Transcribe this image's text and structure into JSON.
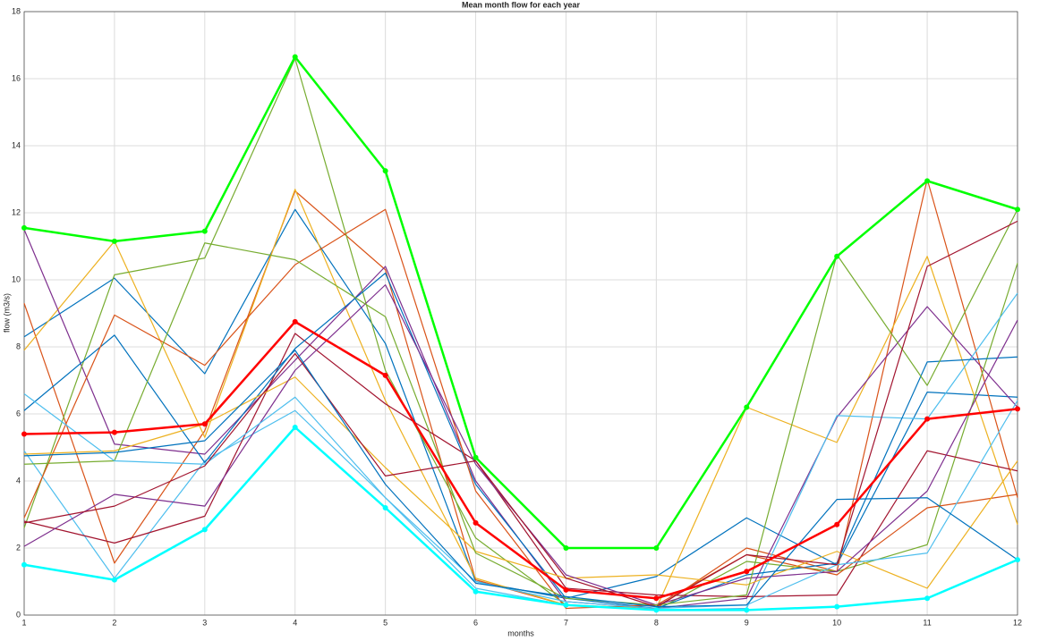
{
  "chart_data": {
    "type": "line",
    "title": "Mean month flow for each year",
    "xlabel": "months",
    "ylabel": "flow (m3/s)",
    "x": [
      1,
      2,
      3,
      4,
      5,
      6,
      7,
      8,
      9,
      10,
      11,
      12
    ],
    "xlim": [
      1,
      12
    ],
    "xticks": [
      1,
      2,
      3,
      4,
      5,
      6,
      7,
      8,
      9,
      10,
      11,
      12
    ],
    "ylim": [
      0,
      18
    ],
    "yticks": [
      0,
      2,
      4,
      6,
      8,
      10,
      12,
      14,
      16,
      18
    ],
    "grid": true,
    "series": [
      {
        "color": "#0072BD",
        "values": [
          8.3,
          10.05,
          7.2,
          12.1,
          8.1,
          1.0,
          0.5,
          1.15,
          2.9,
          1.5,
          6.65,
          6.5
        ]
      },
      {
        "color": "#D95319",
        "values": [
          9.3,
          1.55,
          5.5,
          12.65,
          10.3,
          1.05,
          0.3,
          0.2,
          2.0,
          1.3,
          13.0,
          3.5
        ]
      },
      {
        "color": "#EDB120",
        "values": [
          7.9,
          11.15,
          5.3,
          12.7,
          6.4,
          1.1,
          0.3,
          0.2,
          6.2,
          5.15,
          10.7,
          2.7
        ]
      },
      {
        "color": "#7E2F8E",
        "values": [
          11.5,
          5.1,
          4.8,
          7.6,
          10.4,
          4.0,
          0.4,
          0.2,
          0.5,
          5.9,
          9.2,
          6.2
        ]
      },
      {
        "color": "#77AC30",
        "values": [
          2.6,
          10.15,
          10.65,
          16.6,
          7.3,
          2.3,
          0.3,
          0.15,
          1.6,
          1.3,
          2.1,
          10.5
        ]
      },
      {
        "color": "#4DBEEE",
        "values": [
          4.9,
          1.1,
          4.6,
          6.1,
          3.5,
          0.8,
          0.3,
          0.15,
          0.2,
          5.95,
          5.85,
          9.6
        ]
      },
      {
        "color": "#A2142F",
        "values": [
          2.8,
          2.15,
          2.95,
          8.4,
          6.3,
          4.6,
          0.8,
          0.6,
          0.55,
          0.6,
          4.9,
          4.3
        ]
      },
      {
        "color": "#0072BD",
        "values": [
          6.1,
          8.35,
          4.55,
          7.95,
          10.2,
          3.9,
          0.5,
          0.2,
          1.2,
          1.55,
          7.55,
          7.7
        ]
      },
      {
        "color": "#D95319",
        "values": [
          2.9,
          8.95,
          7.45,
          10.45,
          12.1,
          3.7,
          0.2,
          0.3,
          1.8,
          1.2,
          3.2,
          3.6
        ]
      },
      {
        "color": "#EDB120",
        "values": [
          4.8,
          4.9,
          5.7,
          7.1,
          4.4,
          1.9,
          1.1,
          1.2,
          0.9,
          1.9,
          0.8,
          4.6
        ]
      },
      {
        "color": "#7E2F8E",
        "values": [
          2.05,
          3.6,
          3.25,
          7.3,
          9.85,
          4.5,
          1.2,
          0.3,
          1.1,
          1.3,
          3.7,
          8.8
        ]
      },
      {
        "color": "#77AC30",
        "values": [
          4.5,
          4.6,
          11.1,
          10.6,
          8.9,
          1.85,
          0.5,
          0.3,
          0.6,
          10.75,
          6.85,
          12.1
        ]
      },
      {
        "color": "#4DBEEE",
        "values": [
          6.6,
          4.6,
          4.5,
          6.5,
          3.5,
          1.0,
          0.4,
          0.2,
          0.3,
          1.5,
          1.85,
          6.4
        ]
      },
      {
        "color": "#A2142F",
        "values": [
          2.75,
          3.25,
          4.45,
          7.8,
          4.15,
          4.6,
          1.1,
          0.25,
          1.8,
          1.5,
          10.4,
          11.75
        ]
      },
      {
        "color": "#0072BD",
        "values": [
          4.75,
          4.85,
          5.2,
          7.9,
          3.9,
          0.95,
          0.55,
          0.25,
          0.3,
          3.45,
          3.5,
          1.65
        ]
      },
      {
        "color": "#00FF00",
        "line_width": 2.5,
        "markers": true,
        "values": [
          11.55,
          11.15,
          11.45,
          16.65,
          13.25,
          4.7,
          2.0,
          2.0,
          6.2,
          10.7,
          12.95,
          12.1
        ]
      },
      {
        "color": "#FF0000",
        "line_width": 2.5,
        "markers": true,
        "values": [
          5.4,
          5.45,
          5.7,
          8.75,
          7.15,
          2.75,
          0.75,
          0.5,
          1.3,
          2.7,
          5.85,
          6.15
        ]
      },
      {
        "color": "#00FFFF",
        "line_width": 2.5,
        "markers": true,
        "values": [
          1.5,
          1.05,
          2.55,
          5.6,
          3.2,
          0.7,
          0.3,
          0.15,
          0.15,
          0.25,
          0.5,
          1.65
        ]
      }
    ]
  }
}
